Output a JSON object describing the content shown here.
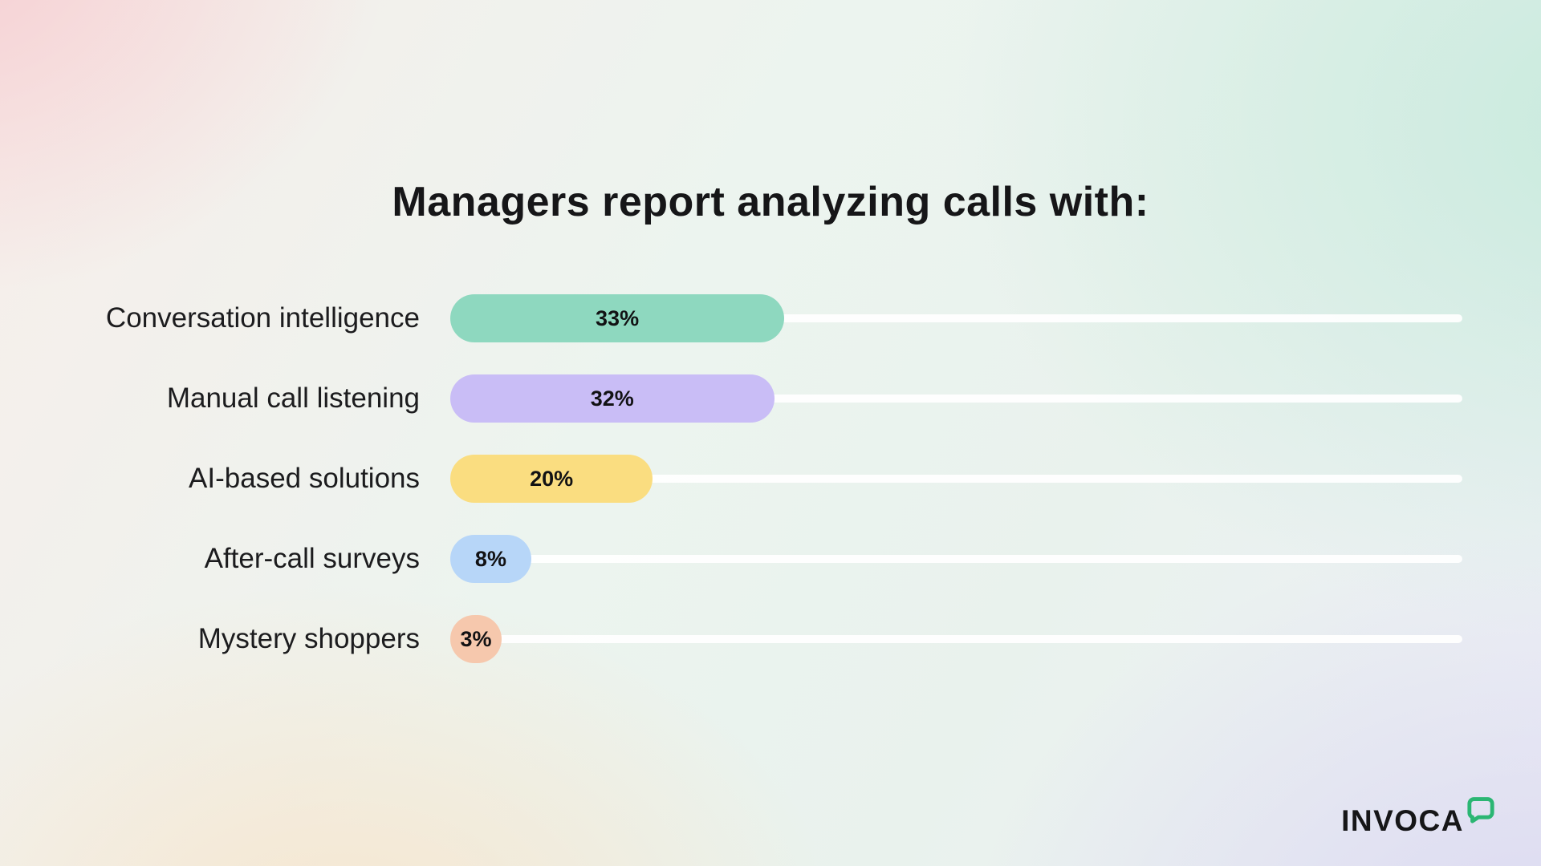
{
  "title": "Managers report analyzing calls with:",
  "chart_data": {
    "type": "bar",
    "orientation": "horizontal",
    "title": "Managers report analyzing calls with:",
    "categories": [
      "Conversation intelligence",
      "Manual call listening",
      "AI-based solutions",
      "After-call surveys",
      "Mystery shoppers"
    ],
    "values": [
      33,
      32,
      20,
      8,
      3
    ],
    "value_labels": [
      "33%",
      "32%",
      "20%",
      "8%",
      "3%"
    ],
    "bar_colors": [
      "#8ed8bf",
      "#c9bdf6",
      "#fadd80",
      "#b7d6f8",
      "#f6c8ad"
    ],
    "track_color": "rgba(255,255,255,0.92)",
    "xlim": [
      0,
      100
    ],
    "grid": false,
    "legend": false,
    "value_label_position": "inside-center"
  },
  "branding": {
    "logo_text": "INVOCA",
    "logo_icon": "speech-bubble-icon",
    "logo_icon_color": "#2bb673"
  }
}
